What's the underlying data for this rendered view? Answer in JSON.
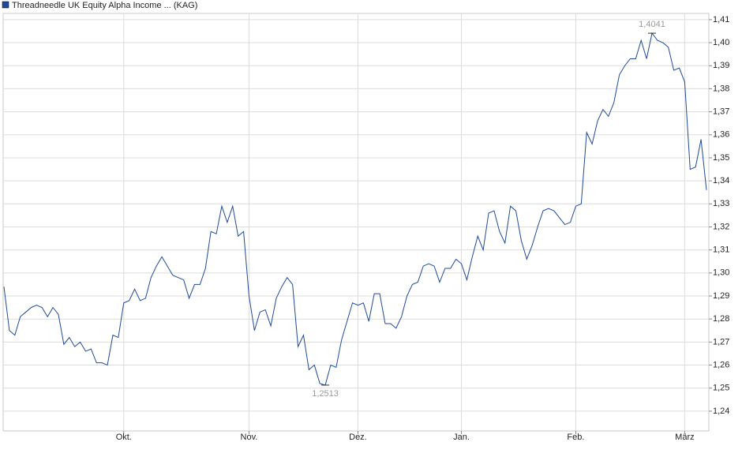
{
  "chart_data": {
    "type": "line",
    "series": [
      {
        "name": "Threadneedle UK Equity Alpha Income ... (KAG)",
        "color": "#1f4a9a",
        "values": [
          1.294,
          1.275,
          1.273,
          1.281,
          1.283,
          1.285,
          1.286,
          1.285,
          1.281,
          1.285,
          1.282,
          1.269,
          1.272,
          1.268,
          1.27,
          1.266,
          1.267,
          1.261,
          1.261,
          1.26,
          1.273,
          1.272,
          1.287,
          1.288,
          1.293,
          1.288,
          1.289,
          1.298,
          1.303,
          1.307,
          1.303,
          1.299,
          1.298,
          1.297,
          1.289,
          1.295,
          1.295,
          1.302,
          1.318,
          1.317,
          1.329,
          1.322,
          1.329,
          1.316,
          1.318,
          1.29,
          1.275,
          1.283,
          1.284,
          1.277,
          1.289,
          1.294,
          1.298,
          1.295,
          1.268,
          1.273,
          1.258,
          1.26,
          1.252,
          1.2513,
          1.26,
          1.259,
          1.271,
          1.279,
          1.287,
          1.286,
          1.287,
          1.279,
          1.291,
          1.291,
          1.278,
          1.278,
          1.276,
          1.281,
          1.29,
          1.295,
          1.296,
          1.303,
          1.304,
          1.303,
          1.296,
          1.302,
          1.302,
          1.306,
          1.304,
          1.297,
          1.307,
          1.316,
          1.31,
          1.326,
          1.327,
          1.318,
          1.313,
          1.329,
          1.327,
          1.314,
          1.306,
          1.312,
          1.32,
          1.327,
          1.328,
          1.327,
          1.324,
          1.321,
          1.322,
          1.329,
          1.33,
          1.361,
          1.356,
          1.366,
          1.371,
          1.368,
          1.374,
          1.386,
          1.39,
          1.393,
          1.393,
          1.401,
          1.393,
          1.4041,
          1.401,
          1.4,
          1.398,
          1.388,
          1.389,
          1.383,
          1.345,
          1.346,
          1.358,
          1.336
        ]
      }
    ],
    "xlim": [
      0,
      129
    ],
    "xticks": [
      {
        "value": 22,
        "label": "Okt."
      },
      {
        "value": 45,
        "label": "Nov."
      },
      {
        "value": 65,
        "label": "Dez."
      },
      {
        "value": 84,
        "label": "Jan."
      },
      {
        "value": 105,
        "label": "Feb."
      },
      {
        "value": 125,
        "label": "März"
      }
    ],
    "ylim": [
      1.2314,
      1.4127
    ],
    "yticks": [
      {
        "value": 1.24,
        "label": "1,24"
      },
      {
        "value": 1.25,
        "label": "1,25"
      },
      {
        "value": 1.26,
        "label": "1,26"
      },
      {
        "value": 1.27,
        "label": "1,27"
      },
      {
        "value": 1.28,
        "label": "1,28"
      },
      {
        "value": 1.29,
        "label": "1,29"
      },
      {
        "value": 1.3,
        "label": "1,30"
      },
      {
        "value": 1.31,
        "label": "1,31"
      },
      {
        "value": 1.32,
        "label": "1,32"
      },
      {
        "value": 1.33,
        "label": "1,33"
      },
      {
        "value": 1.34,
        "label": "1,34"
      },
      {
        "value": 1.35,
        "label": "1,35"
      },
      {
        "value": 1.36,
        "label": "1,36"
      },
      {
        "value": 1.37,
        "label": "1,37"
      },
      {
        "value": 1.38,
        "label": "1,38"
      },
      {
        "value": 1.39,
        "label": "1,39"
      },
      {
        "value": 1.4,
        "label": "1,40"
      },
      {
        "value": 1.41,
        "label": "1,41"
      }
    ],
    "grid": true,
    "annotations": [
      {
        "label": "1,4041",
        "x": 119,
        "value": 1.4041,
        "position": "above"
      },
      {
        "label": "1,2513",
        "x": 59,
        "value": 1.2513,
        "position": "below"
      }
    ]
  }
}
